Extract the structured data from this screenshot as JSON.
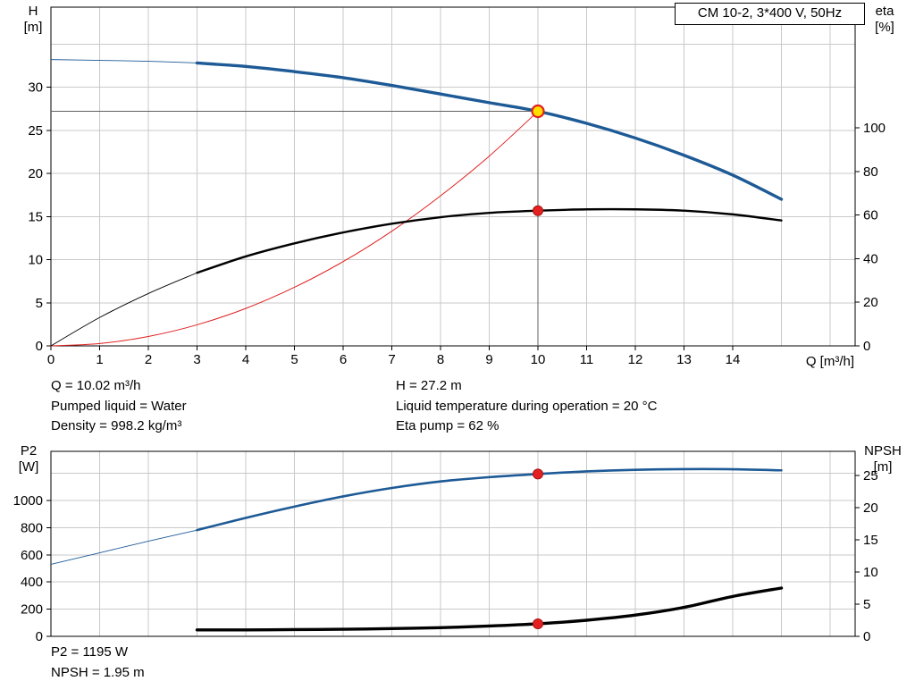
{
  "colors": {
    "blue": "#1d5a96",
    "black": "#000000",
    "red": "#e02020",
    "grid": "#c9c9c9",
    "guide": "#606060",
    "duty_fill": "#ffdf00",
    "dot_fill": "#e52020",
    "dot_stroke": "#a31515"
  },
  "info": {
    "left": [
      "Q = 10.02 m³/h",
      "Pumped liquid = Water",
      "Density = 998.2 kg/m³"
    ],
    "right": [
      "H = 27.2 m",
      "Liquid temperature during operation = 20 °C",
      "Eta pump = 62 %"
    ]
  },
  "footer": [
    "P2 = 1195 W",
    "NPSH = 1.95 m"
  ],
  "chart_data": [
    {
      "id": "head-eta-chart",
      "type": "line",
      "title": "CM 10-2, 3*400 V, 50Hz",
      "x_label": "Q [m³/h]",
      "y_left_label": [
        "H",
        "[m]"
      ],
      "y_right_label": [
        "eta",
        "[%]"
      ],
      "x_range": [
        0,
        16.5
      ],
      "y_left_range": [
        0,
        39.3
      ],
      "y_right_range": [
        0,
        100
      ],
      "x_ticks": [
        0,
        1,
        2,
        3,
        4,
        5,
        6,
        7,
        8,
        9,
        10,
        11,
        12,
        13,
        14
      ],
      "grid_x": [
        1,
        2,
        3,
        4,
        5,
        6,
        7,
        8,
        9,
        10,
        11,
        12,
        13,
        14,
        15,
        16
      ],
      "y_left_ticks": [
        0,
        5,
        10,
        15,
        20,
        25,
        30
      ],
      "grid_y": [
        5,
        10,
        15,
        20,
        25,
        30,
        35
      ],
      "y_right_ticks": [
        0,
        20,
        40,
        60,
        80,
        100
      ],
      "series": [
        {
          "name": "system-curve",
          "axis": "left",
          "color": "red",
          "width": 1,
          "x": [
            0,
            1,
            2,
            3,
            4,
            5,
            6,
            7,
            8,
            9,
            10
          ],
          "y": [
            0,
            0.27,
            1.09,
            2.44,
            4.34,
            6.79,
            9.77,
            13.3,
            17.4,
            22.0,
            27.2
          ]
        },
        {
          "name": "eta-curve",
          "axis": "right",
          "color": "black",
          "width": 2.4,
          "thin_width": 0.9,
          "thin_to": 3,
          "x": [
            0,
            1,
            2,
            3,
            4,
            5,
            6,
            7,
            8,
            9,
            10,
            11,
            12,
            13,
            14,
            15
          ],
          "y": [
            0,
            13,
            24,
            33.5,
            41,
            47,
            52,
            56,
            59,
            61,
            62,
            62.6,
            62.6,
            62,
            60.3,
            57.5
          ]
        },
        {
          "name": "head-curve",
          "axis": "left",
          "color": "blue",
          "width": 3.4,
          "thin_width": 0.9,
          "thin_to": 3,
          "x": [
            0,
            1,
            2,
            3,
            4,
            5,
            6,
            7,
            8,
            9,
            10,
            11,
            12,
            13,
            14,
            15
          ],
          "y": [
            33.2,
            33.1,
            33.0,
            32.8,
            32.4,
            31.8,
            31.1,
            30.2,
            29.2,
            28.2,
            27.2,
            25.8,
            24.1,
            22.1,
            19.8,
            17.0
          ]
        }
      ],
      "guides": [
        {
          "type": "v",
          "x": 10,
          "axis": "left",
          "y1": 0,
          "y2": 27.2
        },
        {
          "type": "h",
          "axis": "left",
          "y": 27.2,
          "x1": 0,
          "x2": 10
        }
      ],
      "markers": [
        {
          "name": "eta-point",
          "x": 10,
          "y": 62,
          "axis": "right",
          "style": "dot"
        },
        {
          "name": "duty-point",
          "x": 10,
          "y": 27.2,
          "axis": "left",
          "style": "duty"
        }
      ]
    },
    {
      "id": "p2-npsh-chart",
      "type": "line",
      "title": "",
      "x_label": "",
      "y_left_label": [
        "P2",
        "[W]"
      ],
      "y_right_label": [
        "NPSH",
        "[m]"
      ],
      "x_range": [
        0,
        16.5
      ],
      "y_left_range": [
        0,
        1360
      ],
      "y_right_range": [
        0,
        28.7
      ],
      "x_ticks": [],
      "grid_x": [
        1,
        2,
        3,
        4,
        5,
        6,
        7,
        8,
        9,
        10,
        11,
        12,
        13,
        14,
        15,
        16
      ],
      "y_left_ticks": [
        0,
        200,
        400,
        600,
        800,
        1000
      ],
      "grid_y": [
        200,
        400,
        600,
        800,
        1000,
        1200
      ],
      "y_right_ticks": [
        0,
        5,
        10,
        15,
        20,
        25
      ],
      "series": [
        {
          "name": "p2-curve",
          "axis": "left",
          "color": "blue",
          "width": 2.6,
          "thin_width": 0.9,
          "thin_to": 3,
          "x": [
            0,
            1,
            2,
            3,
            4,
            5,
            6,
            7,
            8,
            9,
            10,
            11,
            12,
            13,
            14,
            15
          ],
          "y": [
            530,
            615,
            700,
            782,
            872,
            955,
            1030,
            1092,
            1140,
            1172,
            1195,
            1214,
            1226,
            1231,
            1230,
            1222
          ]
        },
        {
          "name": "npsh-curve",
          "axis": "right",
          "color": "black",
          "width": 3.4,
          "x": [
            3,
            4,
            5,
            6,
            7,
            8,
            9,
            10,
            11,
            12,
            13,
            14,
            15
          ],
          "y": [
            1.0,
            1.0,
            1.05,
            1.1,
            1.2,
            1.35,
            1.6,
            1.95,
            2.5,
            3.3,
            4.5,
            6.2,
            7.5
          ]
        }
      ],
      "guides": [],
      "markers": [
        {
          "name": "p2-point",
          "x": 10,
          "y": 1195,
          "axis": "left",
          "style": "dot"
        },
        {
          "name": "npsh-point",
          "x": 10,
          "y": 1.95,
          "axis": "right",
          "style": "dot"
        }
      ]
    }
  ]
}
